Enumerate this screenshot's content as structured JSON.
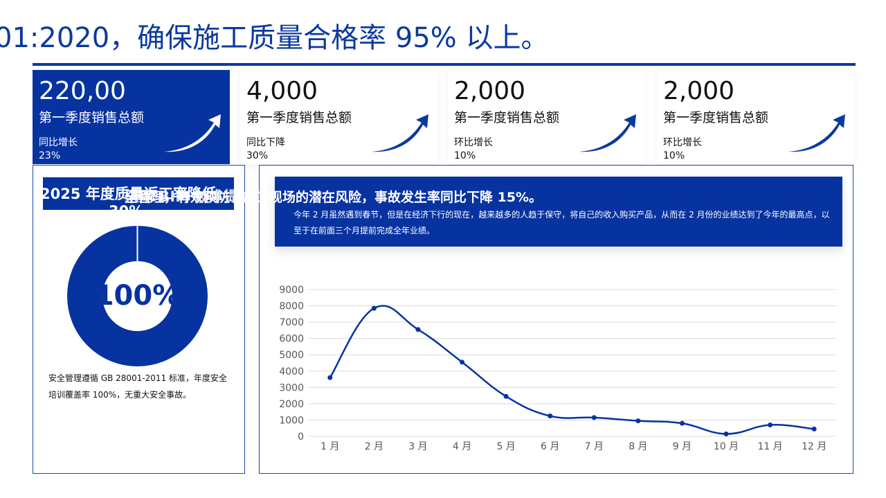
{
  "header": {
    "headline": "01:2020，确保施工质量合格率 95% 以上。"
  },
  "kpis": [
    {
      "value": "220,00",
      "label": "第一季度销售总额",
      "change_label": "同比增长",
      "change_value": "23%"
    },
    {
      "value": "4,000",
      "label": "第一季度销售总额",
      "change_label": "同比下降",
      "change_value": "30%"
    },
    {
      "value": "2,000",
      "label": "第一季度销售总额",
      "change_label": "环比增长",
      "change_value": "10%"
    },
    {
      "value": "2,000",
      "label": "第一季度销售总额",
      "change_label": "环比增长",
      "change_value": "10%"
    }
  ],
  "left_panel": {
    "title": "2025 年度质量返工率降低",
    "title_overlay": "采用 BIM 技术提",
    "title_sub": "30%",
    "donut_value": "100%",
    "donut_fraction": 1.0,
    "description": "安全管理遵循 GB 28001-2011 标准，年度安全培训覆盖率 100%，无重大安全事故。"
  },
  "banner": {
    "title": "全管理，有效预防了施工现场的潜在风险，事故发生率同比下降 15%。",
    "text": "今年 2 月虽然遇到春节，但是在经济下行的现在，越来越多的人趋于保守，将自己的收入购买产品，从而在 2 月份的业绩达到了今年的最高点，以至于在前面三个月提前完成全年业绩。"
  },
  "colors": {
    "primary": "#0633a0",
    "accent": "#0b3a9f",
    "grid": "#d9d9d9"
  },
  "chart_data": {
    "type": "line",
    "categories": [
      "1 月",
      "2 月",
      "3 月",
      "4 月",
      "5 月",
      "6 月",
      "7 月",
      "8 月",
      "9 月",
      "10 月",
      "11 月",
      "12 月"
    ],
    "series": [
      {
        "values": [
          3600,
          7850,
          6550,
          4550,
          2450,
          1250,
          1150,
          950,
          800,
          150,
          700,
          450
        ]
      }
    ],
    "ylim": [
      0,
      9000
    ],
    "yticks": [
      0,
      1000,
      2000,
      3000,
      4000,
      5000,
      6000,
      7000,
      8000,
      9000
    ],
    "smooth": true,
    "grid": true,
    "legend": "none"
  }
}
